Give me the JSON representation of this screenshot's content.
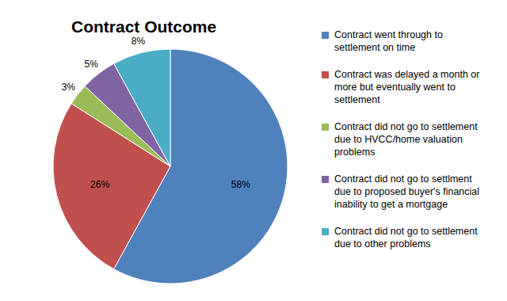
{
  "chart_data": {
    "type": "pie",
    "title": "Contract Outcome",
    "categories": [
      "Contract went through to settlement on time",
      "Contract was delayed a month or more but eventually went to settlement",
      "Contract did not go to settlement due to HVCC/home valuation problems",
      "Contract did not go to settlment due to proposed buyer's financial inability to get a mortgage",
      "Contract did not go to settlement due to other problems"
    ],
    "values": [
      58,
      26,
      3,
      5,
      8
    ],
    "value_labels": [
      "58%",
      "26%",
      "3%",
      "5%",
      "8%"
    ],
    "colors": [
      "#4f81bd",
      "#c0504d",
      "#9bbb59",
      "#8064a2",
      "#4bacc6"
    ],
    "data_labels": true,
    "legend": "right"
  }
}
